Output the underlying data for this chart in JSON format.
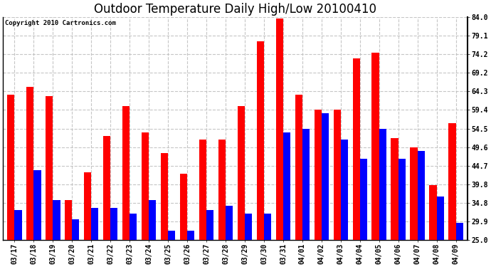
{
  "title": "Outdoor Temperature Daily High/Low 20100410",
  "copyright": "Copyright 2010 Cartronics.com",
  "dates": [
    "03/17",
    "03/18",
    "03/19",
    "03/20",
    "03/21",
    "03/22",
    "03/23",
    "03/24",
    "03/25",
    "03/26",
    "03/27",
    "03/28",
    "03/29",
    "03/30",
    "03/31",
    "04/01",
    "04/02",
    "04/03",
    "04/04",
    "04/05",
    "04/06",
    "04/07",
    "04/08",
    "04/09"
  ],
  "highs": [
    63.5,
    65.5,
    63.0,
    35.5,
    43.0,
    52.5,
    60.5,
    53.5,
    48.0,
    42.5,
    51.5,
    51.5,
    60.5,
    77.5,
    83.5,
    63.5,
    59.5,
    59.5,
    73.0,
    74.5,
    52.0,
    49.5,
    39.5,
    56.0
  ],
  "lows": [
    33.0,
    43.5,
    35.5,
    30.5,
    33.5,
    33.5,
    32.0,
    35.5,
    27.5,
    27.5,
    33.0,
    34.0,
    32.0,
    32.0,
    53.5,
    54.5,
    58.5,
    51.5,
    46.5,
    54.5,
    46.5,
    48.5,
    36.5,
    29.5
  ],
  "ylim": [
    25.0,
    84.0
  ],
  "yticks": [
    25.0,
    29.9,
    34.8,
    39.8,
    44.7,
    49.6,
    54.5,
    59.4,
    64.3,
    69.2,
    74.2,
    79.1,
    84.0
  ],
  "high_color": "#FF0000",
  "low_color": "#0000FF",
  "background_color": "#FFFFFF",
  "grid_color": "#C0C0C0",
  "title_fontsize": 12,
  "tick_fontsize": 7,
  "copyright_fontsize": 6.5,
  "bar_width": 0.38
}
